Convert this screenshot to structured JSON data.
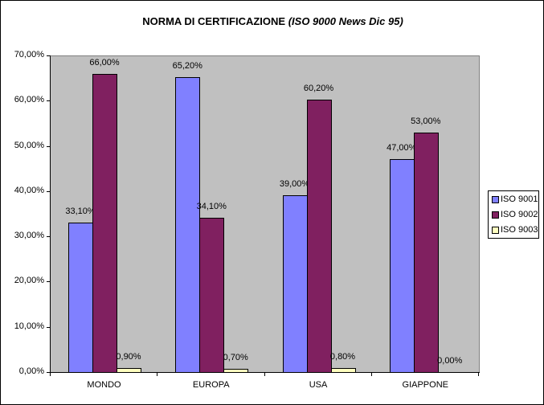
{
  "chart_data": {
    "type": "bar",
    "title": "NORMA DI CERTIFICAZIONE",
    "title_italic": "(ISO 9000 News Dic 95)",
    "xlabel": "",
    "ylabel": "",
    "ylim": [
      0,
      70
    ],
    "yticks": [
      "0,00%",
      "10,00%",
      "20,00%",
      "30,00%",
      "40,00%",
      "50,00%",
      "60,00%",
      "70,00%"
    ],
    "categories": [
      "MONDO",
      "EUROPA",
      "USA",
      "GIAPPONE"
    ],
    "series": [
      {
        "name": "ISO 9001",
        "color": "#8080ff",
        "values": [
          33.1,
          65.2,
          39.0,
          47.0
        ],
        "labels": [
          "33,10%",
          "65,20%",
          "39,00%",
          "47,00%"
        ]
      },
      {
        "name": "ISO 9002",
        "color": "#802060",
        "values": [
          66.0,
          34.1,
          60.2,
          53.0
        ],
        "labels": [
          "66,00%",
          "34,10%",
          "60,20%",
          "53,00%"
        ]
      },
      {
        "name": "ISO 9003",
        "color": "#ffffc0",
        "values": [
          0.9,
          0.7,
          0.8,
          0.0
        ],
        "labels": [
          "0,90%",
          "0,70%",
          "0,80%",
          "0,00%"
        ]
      }
    ],
    "legend_position": "right",
    "grid": false,
    "plot_background": "#c0c0c0"
  }
}
